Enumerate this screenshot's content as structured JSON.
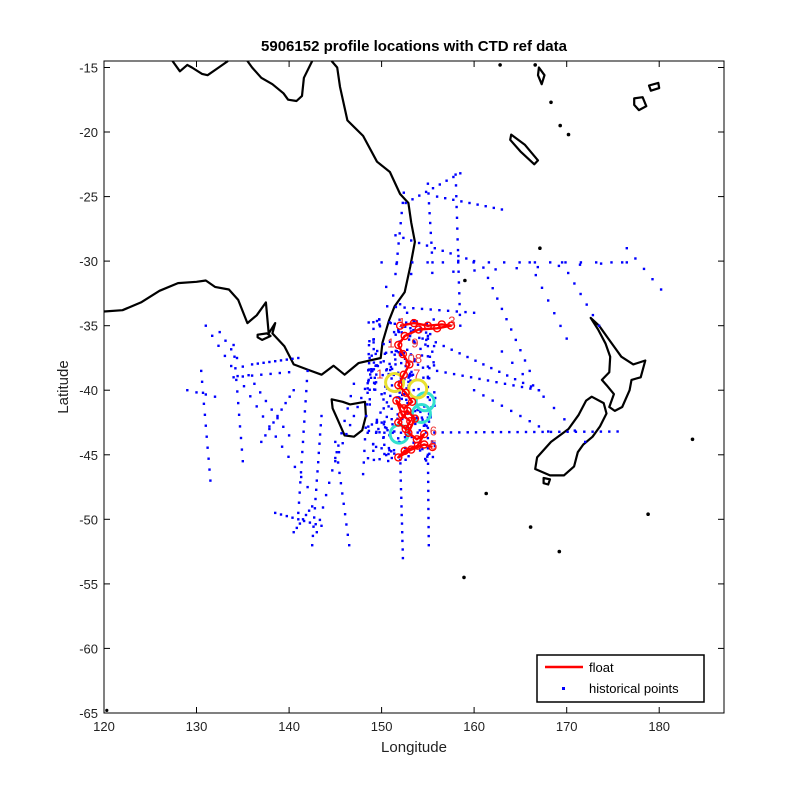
{
  "chart_data": {
    "type": "map-scatter",
    "title": "5906152 profile locations with CTD ref data",
    "xlabel": "Longitude",
    "ylabel": "Latitude",
    "xlim": [
      120,
      187
    ],
    "ylim": [
      -65,
      -14.5
    ],
    "xticks": [
      120,
      130,
      140,
      150,
      160,
      170,
      180
    ],
    "yticks": [
      -15,
      -20,
      -25,
      -30,
      -35,
      -40,
      -45,
      -50,
      -55,
      -60,
      -65
    ],
    "legend": {
      "position": "bottom-right",
      "entries": [
        {
          "label": "float",
          "style": "line",
          "color": "#ff0000"
        },
        {
          "label": "historical points",
          "style": "dot",
          "color": "#0000ff"
        }
      ]
    },
    "colors": {
      "coastline": "#000000",
      "historical": "#0000ff",
      "float_track": "#ff0000",
      "float_cluster_cool": "#33e0d0",
      "float_cluster_warm": "#e8e030"
    },
    "float_track": [
      [
        152.0,
        -35.0
      ],
      [
        153.5,
        -34.8
      ],
      [
        155.0,
        -35.0
      ],
      [
        156.5,
        -34.9
      ],
      [
        157.5,
        -35.0
      ],
      [
        156.0,
        -35.2
      ],
      [
        154.0,
        -35.3
      ],
      [
        152.5,
        -35.8
      ],
      [
        151.8,
        -36.5
      ],
      [
        152.3,
        -37.2
      ],
      [
        153.0,
        -38.0
      ],
      [
        152.4,
        -38.8
      ],
      [
        151.8,
        -39.6
      ],
      [
        152.6,
        -40.2
      ],
      [
        153.3,
        -40.9
      ],
      [
        152.4,
        -41.4
      ],
      [
        151.6,
        -40.8
      ],
      [
        152.2,
        -41.9
      ],
      [
        153.1,
        -42.4
      ],
      [
        152.6,
        -43.0
      ],
      [
        151.8,
        -42.5
      ],
      [
        152.8,
        -41.6
      ],
      [
        153.6,
        -42.2
      ],
      [
        152.9,
        -43.3
      ],
      [
        153.8,
        -43.8
      ],
      [
        154.6,
        -43.4
      ],
      [
        153.9,
        -44.3
      ],
      [
        152.5,
        -44.7
      ],
      [
        151.8,
        -45.2
      ],
      [
        153.2,
        -44.6
      ],
      [
        154.6,
        -44.2
      ],
      [
        155.5,
        -44.4
      ]
    ],
    "float_cluster": [
      {
        "lon": 154.3,
        "lat": -41.8,
        "tone": "cool"
      },
      {
        "lon": 154.7,
        "lat": -40.9,
        "tone": "cool"
      },
      {
        "lon": 153.9,
        "lat": -39.9,
        "tone": "warm"
      },
      {
        "lon": 151.4,
        "lat": -39.4,
        "tone": "warm"
      },
      {
        "lon": 151.9,
        "lat": -43.4,
        "tone": "cool"
      }
    ],
    "profile_labels": [
      {
        "text": "1",
        "lon": 152.2,
        "lat": -35.1
      },
      {
        "text": "3",
        "lon": 157.6,
        "lat": -35.0
      },
      {
        "text": "9",
        "lon": 153.6,
        "lat": -36.7
      },
      {
        "text": "1",
        "lon": 151.0,
        "lat": -36.7
      },
      {
        "text": "08",
        "lon": 153.6,
        "lat": -37.9
      },
      {
        "text": "1",
        "lon": 149.8,
        "lat": -39.1
      },
      {
        "text": "7",
        "lon": 153.8,
        "lat": -39.1
      },
      {
        "text": "6",
        "lon": 155.6,
        "lat": -43.5
      },
      {
        "text": "5",
        "lon": 155.6,
        "lat": -44.6
      }
    ]
  }
}
